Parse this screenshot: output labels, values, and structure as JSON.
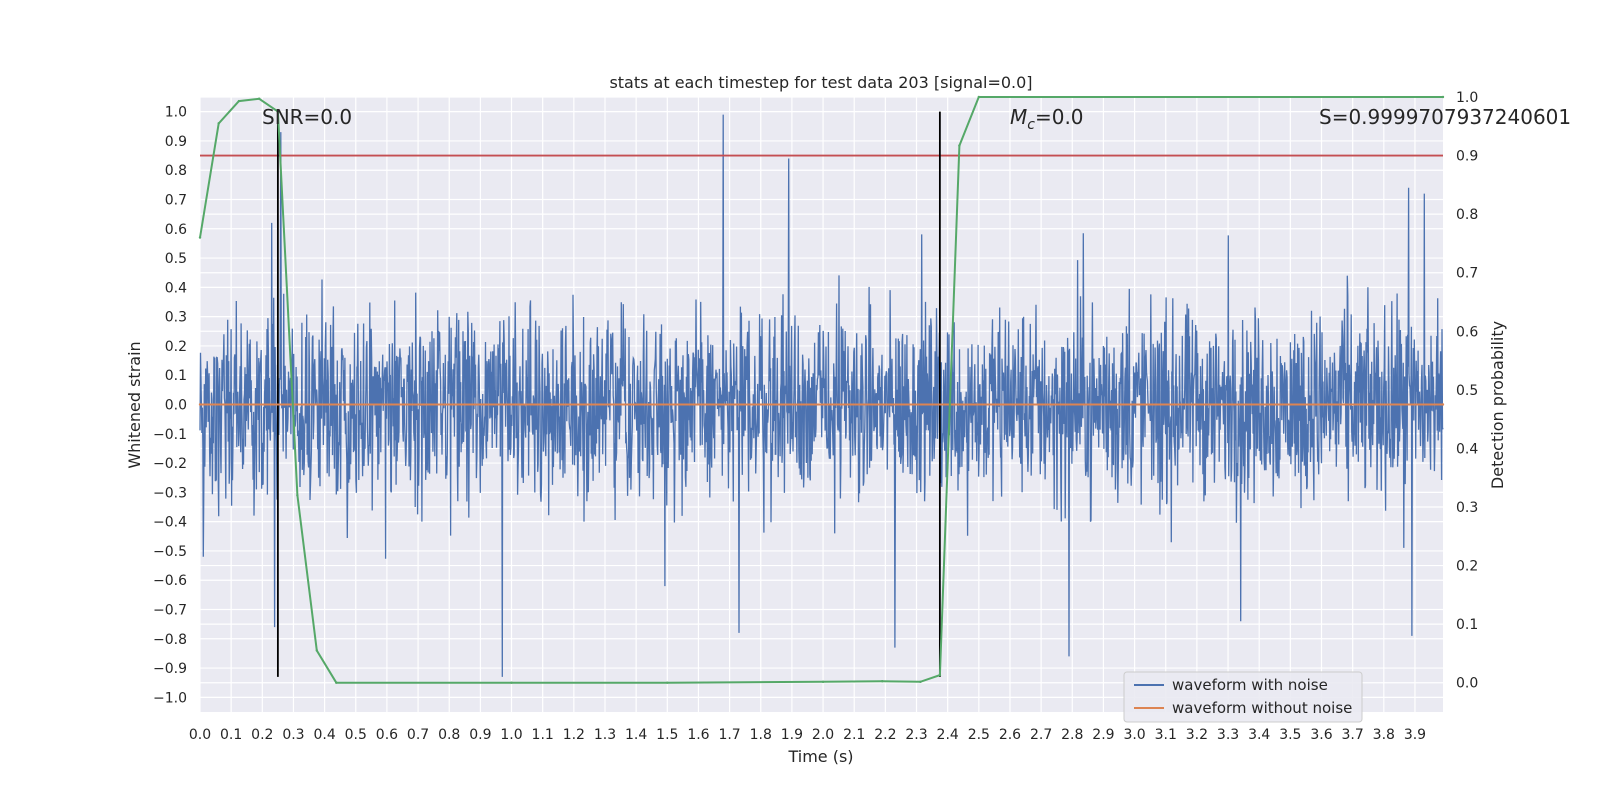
{
  "chart_data": {
    "type": "line",
    "title": "stats at each timestep for test data 203 [signal=0.0]",
    "xlabel": "Time (s)",
    "ylabel": "Whitened strain",
    "y2label": "Detection probability",
    "xlim": [
      0.0,
      3.99
    ],
    "ylim": [
      -1.05,
      1.05
    ],
    "y2lim": [
      -0.05,
      1.0
    ],
    "x_ticks": [
      0.0,
      0.1,
      0.2,
      0.3,
      0.4,
      0.5,
      0.6,
      0.7,
      0.8,
      0.9,
      1.0,
      1.1,
      1.2,
      1.3,
      1.4,
      1.5,
      1.6,
      1.7,
      1.8,
      1.9,
      2.0,
      2.1,
      2.2,
      2.3,
      2.4,
      2.5,
      2.6,
      2.7,
      2.8,
      2.9,
      3.0,
      3.1,
      3.2,
      3.3,
      3.4,
      3.5,
      3.6,
      3.7,
      3.8,
      3.9
    ],
    "x_tick_labels": [
      "0.0",
      "0.1",
      "0.2",
      "0.3",
      "0.4",
      "0.5",
      "0.6",
      "0.7",
      "0.8",
      "0.9",
      "1.0",
      "1.1",
      "1.2",
      "1.3",
      "1.4",
      "1.5",
      "1.6",
      "1.7",
      "1.8",
      "1.9",
      "2.0",
      "2.1",
      "2.2",
      "2.3",
      "2.4",
      "2.5",
      "2.6",
      "2.7",
      "2.8",
      "2.9",
      "3.0",
      "3.1",
      "3.2",
      "3.3",
      "3.4",
      "3.5",
      "3.6",
      "3.7",
      "3.8",
      "3.9"
    ],
    "y_ticks": [
      1.0,
      0.9,
      0.8,
      0.7,
      0.6,
      0.5,
      0.4,
      0.3,
      0.2,
      0.1,
      0.0,
      -0.1,
      -0.2,
      -0.3,
      -0.4,
      -0.5,
      -0.6,
      -0.7,
      -0.8,
      -0.9,
      -1.0
    ],
    "y_tick_labels": [
      "1.0",
      "0.9",
      "0.8",
      "0.7",
      "0.6",
      "0.5",
      "0.4",
      "0.3",
      "0.2",
      "0.1",
      "0.0",
      "−0.1",
      "−0.2",
      "−0.3",
      "−0.4",
      "−0.5",
      "−0.6",
      "−0.7",
      "−0.8",
      "−0.9",
      "−1.0"
    ],
    "y2_ticks": [
      1.0,
      0.9,
      0.8,
      0.7,
      0.6,
      0.5,
      0.4,
      0.3,
      0.2,
      0.1,
      0.0
    ],
    "y2_tick_labels": [
      "1.0",
      "0.9",
      "0.8",
      "0.7",
      "0.6",
      "0.5",
      "0.4",
      "0.3",
      "0.2",
      "0.1",
      "0.0"
    ],
    "grid": true,
    "legend_position": "lower-right",
    "annotations": [
      {
        "text": "SNR=0.0",
        "x": 0.2
      },
      {
        "text": "=0.0",
        "math_symbol": "M",
        "math_sub": "c",
        "x": 2.6
      },
      {
        "text": "S=0.9999707937240601",
        "x": 3.6
      }
    ],
    "series": [
      {
        "name": "waveform with noise",
        "color": "#4c72b0",
        "axis": "left",
        "kind": "noise",
        "envelope_typical": 0.4,
        "peaks": [
          {
            "x": 0.01,
            "y": 0.55
          },
          {
            "x": 0.01,
            "y": -0.52
          },
          {
            "x": 0.26,
            "y": 0.93
          },
          {
            "x": 0.24,
            "y": -0.76
          },
          {
            "x": 0.23,
            "y": 0.62
          },
          {
            "x": 0.97,
            "y": -0.93
          },
          {
            "x": 1.68,
            "y": 0.99
          },
          {
            "x": 1.89,
            "y": 0.84
          },
          {
            "x": 1.73,
            "y": -0.78
          },
          {
            "x": 2.23,
            "y": -0.83
          },
          {
            "x": 2.79,
            "y": -0.86
          },
          {
            "x": 3.34,
            "y": -0.74
          },
          {
            "x": 3.88,
            "y": 0.74
          },
          {
            "x": 3.93,
            "y": 0.72
          },
          {
            "x": 3.89,
            "y": -0.79
          }
        ]
      },
      {
        "name": "waveform without noise",
        "color": "#dd8452",
        "axis": "left",
        "x": [
          0.0,
          3.99
        ],
        "y": [
          0.0,
          0.0
        ]
      },
      {
        "color": "#55a868",
        "axis": "right",
        "x": [
          0.0,
          0.06,
          0.125,
          0.19,
          0.25,
          0.3125,
          0.375,
          0.4375,
          1.0,
          1.5,
          2.0,
          2.19,
          2.3125,
          2.375,
          2.4375,
          2.5,
          3.99
        ],
        "y": [
          0.76,
          0.955,
          0.993,
          0.997,
          0.975,
          0.32,
          0.055,
          0.0,
          0.0,
          0.0,
          0.0015,
          0.0025,
          0.0015,
          0.013,
          0.917,
          1.0,
          1.0
        ]
      }
    ],
    "reference_lines": [
      {
        "orientation": "horizontal",
        "axis": "right",
        "y": 0.9,
        "color": "#c44e52"
      },
      {
        "orientation": "vertical",
        "x": 0.25,
        "y_from": -0.93,
        "y_to": 1.0,
        "color": "#000000"
      },
      {
        "orientation": "vertical",
        "x": 2.375,
        "y_from": -0.93,
        "y_to": 1.0,
        "color": "#000000"
      }
    ]
  }
}
